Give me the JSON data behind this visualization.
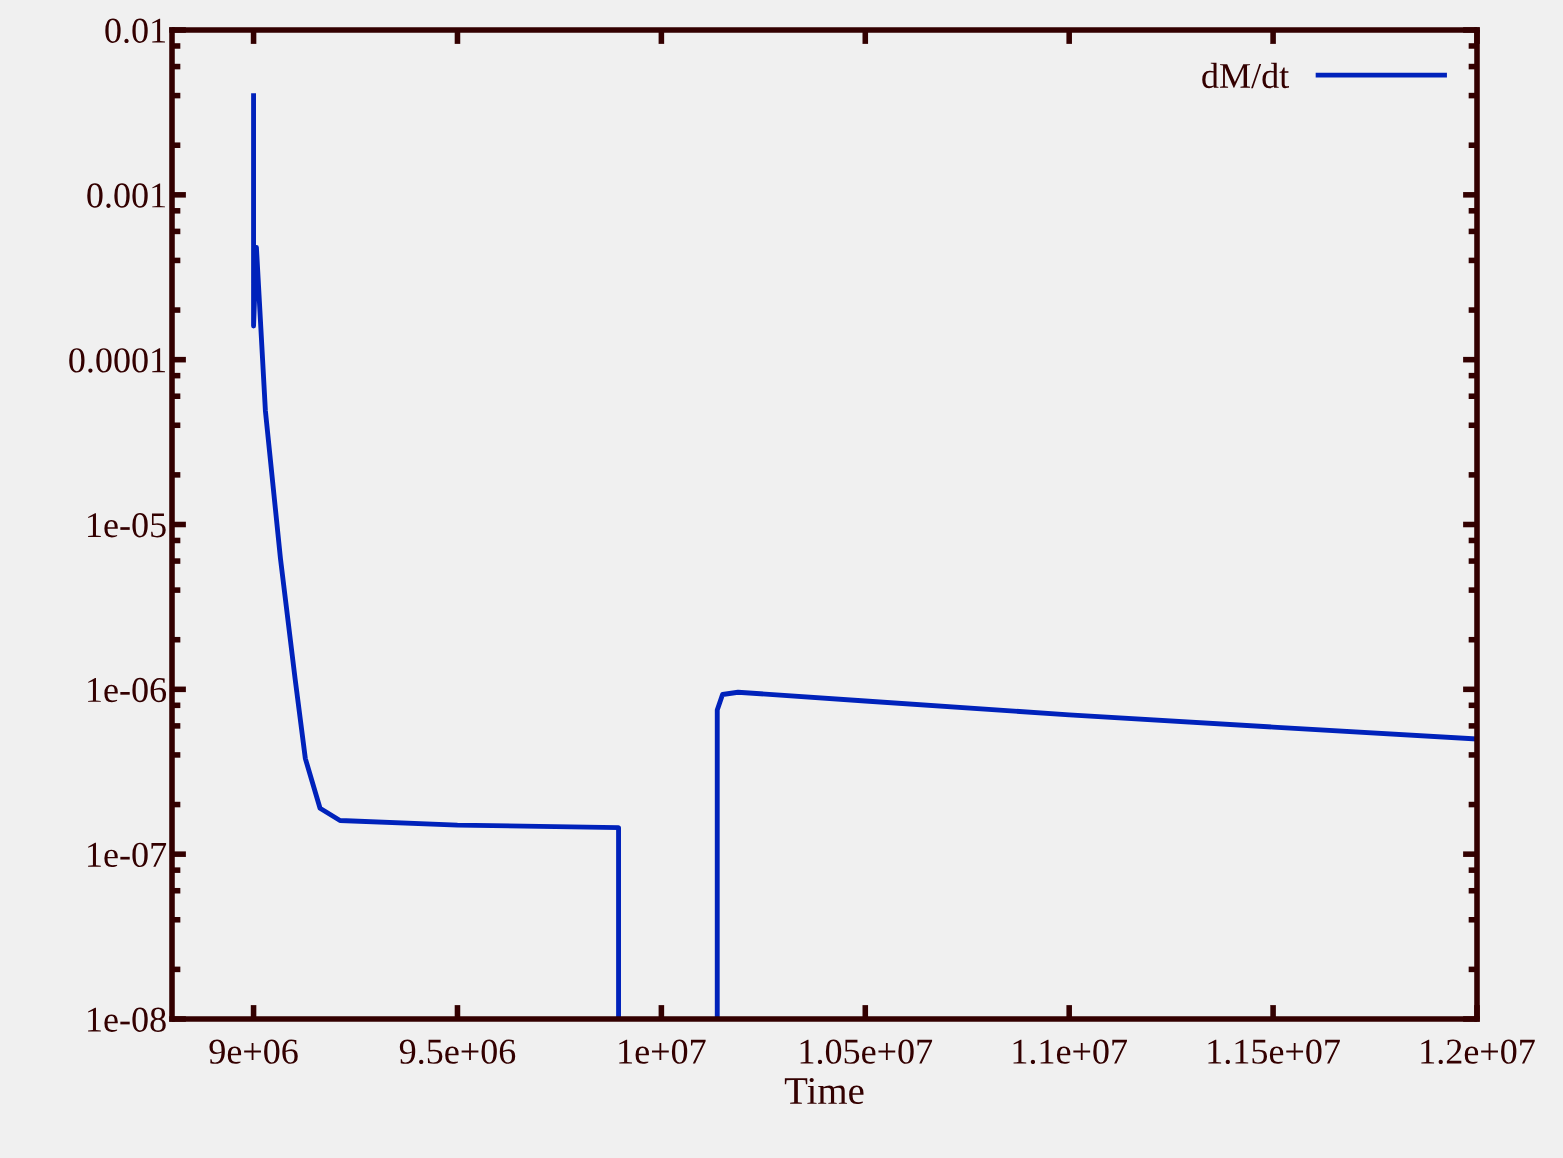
{
  "chart_data": {
    "type": "line",
    "xlabel": "Time",
    "log": "y",
    "legend": "top right",
    "grid": false,
    "marker": "none",
    "line_style": "solid",
    "xlim": [
      8800000.0,
      12000000.0
    ],
    "xticks": [
      {
        "value": 9000000,
        "label": "9e+06"
      },
      {
        "value": 9500000,
        "label": "9.5e+06"
      },
      {
        "value": 10000000,
        "label": "1e+07"
      },
      {
        "value": 10500000,
        "label": "1.05e+07"
      },
      {
        "value": 11000000,
        "label": "1.1e+07"
      },
      {
        "value": 11500000,
        "label": "1.15e+07"
      },
      {
        "value": 12000000,
        "label": "1.2e+07"
      }
    ],
    "ylim": [
      1e-08,
      0.01
    ],
    "yticks": [
      {
        "value": 1e-08,
        "label": "1e-08"
      },
      {
        "value": 1e-07,
        "label": "1e-07"
      },
      {
        "value": 1e-06,
        "label": "1e-06"
      },
      {
        "value": 1e-05,
        "label": "1e-05"
      },
      0.0001,
      0.001,
      0.01
    ],
    "series": [
      {
        "name": "dM/dt",
        "color": "#0022bb",
        "x": [
          9000000,
          9000000,
          9007000,
          9029000,
          9066000,
          9102000,
          9127000,
          9163000,
          9212000,
          9500000,
          9895000,
          9895000,
          10000000,
          10137000,
          10137000,
          10150000,
          10188000,
          10500000,
          11000000,
          11500000,
          12000000
        ],
        "values": [
          0.004,
          0.00016,
          0.00048,
          4.9e-05,
          6.2e-06,
          1.15e-06,
          3.8e-07,
          1.9e-07,
          1.6e-07,
          1.5e-07,
          1.45e-07,
          1e-08,
          null,
          1e-08,
          7.5e-07,
          9.3e-07,
          9.6e-07,
          8.5e-07,
          7e-07,
          5.9e-07,
          5e-07
        ]
      }
    ]
  }
}
